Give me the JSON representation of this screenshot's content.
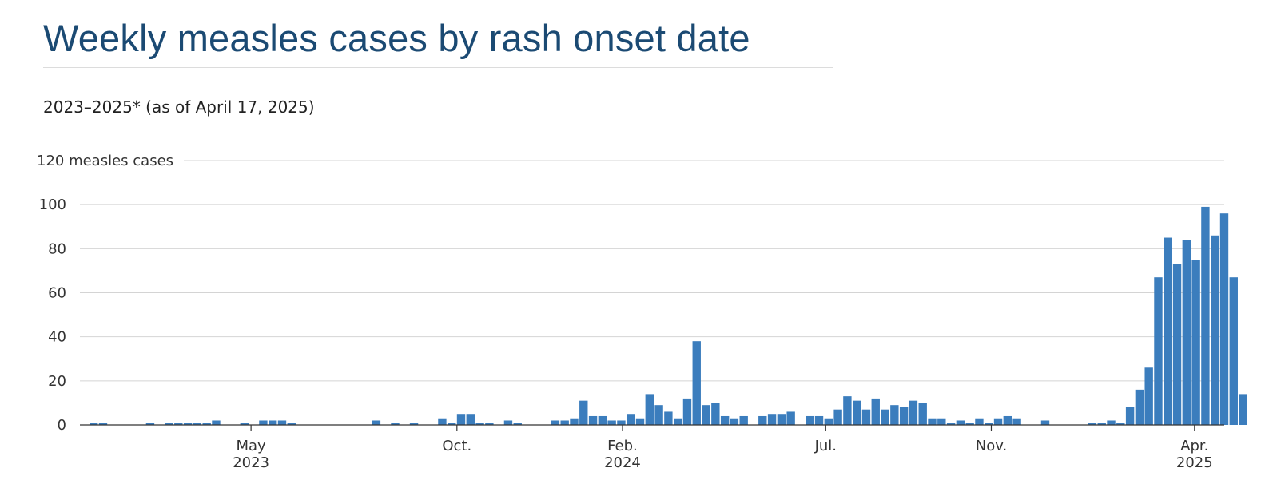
{
  "title": "Weekly measles cases by rash onset date",
  "subtitle": "2023–2025* (as of April 17, 2025)",
  "colors": {
    "bar": "#3b7dbd",
    "title": "#1b4a73",
    "grid": "#d4d4d4",
    "axis": "#333333"
  },
  "chart_data": {
    "type": "bar",
    "y_unit_label": "measles cases",
    "ylim": [
      0,
      120
    ],
    "yticks": [
      0,
      20,
      40,
      60,
      80,
      100,
      120
    ],
    "grid": true,
    "x_start_week": "2023-01-01",
    "x_ticks": [
      {
        "label": "May",
        "year": "2023",
        "date": "2023-05-01"
      },
      {
        "label": "Oct.",
        "year": "",
        "date": "2023-10-01"
      },
      {
        "label": "Feb.",
        "year": "2024",
        "date": "2024-02-01"
      },
      {
        "label": "Jul.",
        "year": "",
        "date": "2024-07-01"
      },
      {
        "label": "Nov.",
        "year": "",
        "date": "2024-11-01"
      },
      {
        "label": "Apr.",
        "year": "2025",
        "date": "2025-04-01"
      }
    ],
    "values": [
      1,
      1,
      0,
      0,
      0,
      0,
      1,
      0,
      1,
      1,
      1,
      1,
      1,
      2,
      0,
      0,
      1,
      0,
      2,
      2,
      2,
      1,
      0,
      0,
      0,
      0,
      0,
      0,
      0,
      0,
      2,
      0,
      1,
      0,
      1,
      0,
      0,
      3,
      1,
      5,
      5,
      1,
      1,
      0,
      2,
      1,
      0,
      0,
      0,
      2,
      2,
      3,
      11,
      4,
      4,
      2,
      2,
      5,
      3,
      14,
      9,
      6,
      3,
      12,
      38,
      9,
      10,
      4,
      3,
      4,
      0,
      4,
      5,
      5,
      6,
      0,
      4,
      4,
      3,
      7,
      13,
      11,
      7,
      12,
      7,
      9,
      8,
      11,
      10,
      3,
      3,
      1,
      2,
      1,
      3,
      1,
      3,
      4,
      3,
      0,
      0,
      2,
      0,
      0,
      0,
      0,
      1,
      1,
      2,
      1,
      8,
      16,
      26,
      67,
      85,
      73,
      84,
      75,
      99,
      86,
      96,
      67,
      14
    ]
  }
}
